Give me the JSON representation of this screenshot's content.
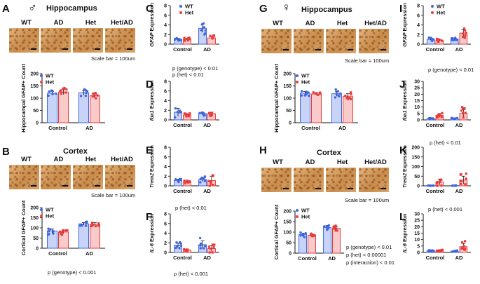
{
  "colors": {
    "wt": "#3f66e0",
    "het": "#ea3b3b",
    "wt_fill": "#c7d3f7",
    "het_fill": "#f8caca"
  },
  "labels": {
    "A": "A",
    "B": "B",
    "C": "C",
    "D": "D",
    "E": "E",
    "F": "F",
    "G": "G",
    "H": "H",
    "I": "I",
    "J": "J",
    "K": "K",
    "L": "L",
    "male_symbol": "♂",
    "female_symbol": "♀",
    "hippocampus": "Hippocampus",
    "cortex": "Cortex",
    "wt": "WT",
    "ad": "AD",
    "het": "Het",
    "het_ad": "Het/AD",
    "scale_note": "Scale bar = 100um"
  },
  "stats": {
    "B": "p (genotype) < 0.001",
    "C": [
      "p (genotype) < 0.01",
      "p (het) < 0.01"
    ],
    "E": "p (het) < 0.01",
    "F": "p (het) < 0.001",
    "H": [
      "p (genotype) < 0.01",
      "p (het) < 0.00001",
      "p (interaction) < 0.01"
    ],
    "I": "p (genotype) < 0.01",
    "J": "p (het) < 0.01",
    "K": "p (het) < 0.001"
  },
  "chart_data": [
    {
      "id": "A",
      "type": "bar",
      "title": "",
      "xlabel": "",
      "ylabel": "Hippocampal GFAP+ Count",
      "categories": [
        "Control",
        "AD"
      ],
      "ylim": [
        0,
        200
      ],
      "yticks": [
        0,
        50,
        100,
        150,
        200
      ],
      "legend": [
        "WT",
        "Het"
      ],
      "series": [
        {
          "name": "WT",
          "values": [
            120,
            122
          ],
          "sem": [
            8,
            10
          ]
        },
        {
          "name": "Het",
          "values": [
            125,
            110
          ],
          "sem": [
            10,
            7
          ]
        }
      ]
    },
    {
      "id": "B",
      "type": "bar",
      "title": "",
      "xlabel": "",
      "ylabel": "Cortical GFAP+ Count",
      "categories": [
        "Control",
        "AD"
      ],
      "ylim": [
        0,
        200
      ],
      "yticks": [
        0,
        50,
        100,
        150,
        200
      ],
      "legend": [
        "WT",
        "Het"
      ],
      "series": [
        {
          "name": "WT",
          "values": [
            85,
            120
          ],
          "sem": [
            10,
            6
          ]
        },
        {
          "name": "Het",
          "values": [
            80,
            118
          ],
          "sem": [
            8,
            8
          ]
        }
      ]
    },
    {
      "id": "C",
      "type": "bar",
      "title": "",
      "xlabel": "",
      "ylabel": "GFAP Expression",
      "categories": [
        "Control",
        "AD"
      ],
      "ylim": [
        0,
        8
      ],
      "yticks": [
        0,
        2,
        4,
        6,
        8
      ],
      "legend": [
        "WT",
        "Het"
      ],
      "series": [
        {
          "name": "WT",
          "values": [
            1.0,
            3.3
          ],
          "sem": [
            0.2,
            0.8
          ]
        },
        {
          "name": "Het",
          "values": [
            1.0,
            1.3
          ],
          "sem": [
            0.2,
            0.3
          ]
        }
      ]
    },
    {
      "id": "D",
      "type": "bar",
      "title": "",
      "xlabel": "",
      "ylabel": "Iba1 Expression",
      "categories": [
        "Control",
        "AD"
      ],
      "ylim": [
        0,
        8
      ],
      "yticks": [
        0,
        2,
        4,
        6,
        8
      ],
      "legend": [],
      "series": [
        {
          "name": "WT",
          "values": [
            1.6,
            1.3
          ],
          "sem": [
            0.8,
            0.3
          ]
        },
        {
          "name": "Het",
          "values": [
            1.0,
            1.3
          ],
          "sem": [
            0.2,
            0.3
          ]
        }
      ]
    },
    {
      "id": "E",
      "type": "bar",
      "title": "",
      "xlabel": "",
      "ylabel": "Trem2 Expression",
      "categories": [
        "Control",
        "AD"
      ],
      "ylim": [
        0,
        8
      ],
      "yticks": [
        0,
        2,
        4,
        6,
        8
      ],
      "legend": [],
      "series": [
        {
          "name": "WT",
          "values": [
            1.1,
            1.3
          ],
          "sem": [
            0.3,
            0.4
          ]
        },
        {
          "name": "Het",
          "values": [
            0.8,
            1.1
          ],
          "sem": [
            0.2,
            0.9
          ]
        }
      ]
    },
    {
      "id": "F",
      "type": "bar",
      "title": "",
      "xlabel": "",
      "ylabel": "IL-6 Expression",
      "categories": [
        "Control",
        "AD"
      ],
      "ylim": [
        0,
        8
      ],
      "yticks": [
        0,
        2,
        4,
        6,
        8
      ],
      "legend": [],
      "series": [
        {
          "name": "WT",
          "values": [
            1.5,
            1.6
          ],
          "sem": [
            0.4,
            0.8
          ]
        },
        {
          "name": "Het",
          "values": [
            0.5,
            0.8
          ],
          "sem": [
            0.2,
            0.6
          ]
        }
      ]
    },
    {
      "id": "G",
      "type": "bar",
      "title": "",
      "xlabel": "",
      "ylabel": "Hippocampal GFAP+ Count",
      "categories": [
        "Control",
        "AD"
      ],
      "ylim": [
        0,
        200
      ],
      "yticks": [
        0,
        50,
        100,
        150,
        200
      ],
      "legend": [
        "WT",
        "Het"
      ],
      "series": [
        {
          "name": "WT",
          "values": [
            120,
            118
          ],
          "sem": [
            7,
            10
          ]
        },
        {
          "name": "Het",
          "values": [
            117,
            108
          ],
          "sem": [
            5,
            10
          ]
        }
      ]
    },
    {
      "id": "H",
      "type": "bar",
      "title": "",
      "xlabel": "",
      "ylabel": "Cortical GFAP+ Count",
      "categories": [
        "Control",
        "AD"
      ],
      "ylim": [
        0,
        200
      ],
      "yticks": [
        0,
        50,
        100,
        150,
        200
      ],
      "legend": [
        "WT",
        "Het"
      ],
      "series": [
        {
          "name": "WT",
          "values": [
            88,
            122
          ],
          "sem": [
            7,
            9
          ]
        },
        {
          "name": "Het",
          "values": [
            85,
            118
          ],
          "sem": [
            6,
            10
          ]
        }
      ]
    },
    {
      "id": "I",
      "type": "bar",
      "title": "",
      "xlabel": "",
      "ylabel": "GFAP Expression",
      "categories": [
        "Control",
        "AD"
      ],
      "ylim": [
        0,
        8
      ],
      "yticks": [
        0,
        2,
        4,
        6,
        8
      ],
      "legend": [
        "WT",
        "Het"
      ],
      "series": [
        {
          "name": "WT",
          "values": [
            1.0,
            1.1
          ],
          "sem": [
            0.2,
            0.15
          ]
        },
        {
          "name": "Het",
          "values": [
            0.8,
            2.3
          ],
          "sem": [
            0.2,
            0.7
          ]
        }
      ]
    },
    {
      "id": "J",
      "type": "bar",
      "title": "",
      "xlabel": "",
      "ylabel": "Iba1 Expression",
      "categories": [
        "Control",
        "AD"
      ],
      "ylim": [
        0,
        30
      ],
      "yticks": [
        0,
        5,
        10,
        15,
        20,
        25,
        30
      ],
      "legend": [],
      "series": [
        {
          "name": "WT",
          "values": [
            1.0,
            1.1
          ],
          "sem": [
            0.3,
            0.3
          ]
        },
        {
          "name": "Het",
          "values": [
            3.5,
            5
          ],
          "sem": [
            1.5,
            3
          ]
        }
      ]
    },
    {
      "id": "K",
      "type": "bar",
      "title": "",
      "xlabel": "",
      "ylabel": "Trem2 Expression",
      "categories": [
        "Control",
        "AD"
      ],
      "ylim": [
        0,
        200
      ],
      "yticks": [
        0,
        50,
        100,
        150,
        200
      ],
      "legend": [],
      "series": [
        {
          "name": "WT",
          "values": [
            1,
            1.5
          ],
          "sem": [
            0.5,
            0.5
          ]
        },
        {
          "name": "Het",
          "values": [
            20,
            30
          ],
          "sem": [
            15,
            20
          ]
        }
      ]
    },
    {
      "id": "L",
      "type": "bar",
      "title": "",
      "xlabel": "",
      "ylabel": "IL-6 Expression",
      "categories": [
        "Control",
        "AD"
      ],
      "ylim": [
        0,
        30
      ],
      "yticks": [
        0,
        5,
        10,
        15,
        20,
        25,
        30
      ],
      "legend": [],
      "series": [
        {
          "name": "WT",
          "values": [
            1.5,
            1.0
          ],
          "sem": [
            0.5,
            0.3
          ]
        },
        {
          "name": "Het",
          "values": [
            1.5,
            4.5
          ],
          "sem": [
            0.5,
            2.5
          ]
        }
      ]
    }
  ]
}
